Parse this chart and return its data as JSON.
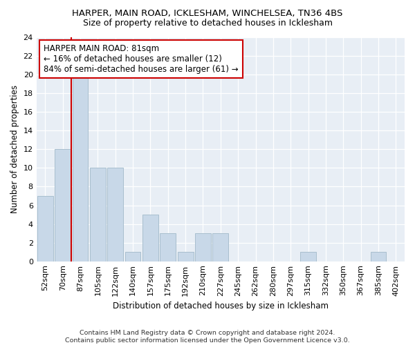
{
  "title1": "HARPER, MAIN ROAD, ICKLESHAM, WINCHELSEA, TN36 4BS",
  "title2": "Size of property relative to detached houses in Icklesham",
  "xlabel": "Distribution of detached houses by size in Icklesham",
  "ylabel": "Number of detached properties",
  "footer1": "Contains HM Land Registry data © Crown copyright and database right 2024.",
  "footer2": "Contains public sector information licensed under the Open Government Licence v3.0.",
  "bar_labels": [
    "52sqm",
    "70sqm",
    "87sqm",
    "105sqm",
    "122sqm",
    "140sqm",
    "157sqm",
    "175sqm",
    "192sqm",
    "210sqm",
    "227sqm",
    "245sqm",
    "262sqm",
    "280sqm",
    "297sqm",
    "315sqm",
    "332sqm",
    "350sqm",
    "367sqm",
    "385sqm",
    "402sqm"
  ],
  "bar_values": [
    7,
    12,
    20,
    10,
    10,
    1,
    5,
    3,
    1,
    3,
    3,
    0,
    0,
    0,
    0,
    1,
    0,
    0,
    0,
    1,
    0
  ],
  "bar_color": "#c8d8e8",
  "bar_edge_color": "#a8bece",
  "vline_color": "#cc0000",
  "vline_x_index": 2,
  "annotation_title": "HARPER MAIN ROAD: 81sqm",
  "annotation_line1": "← 16% of detached houses are smaller (12)",
  "annotation_line2": "84% of semi-detached houses are larger (61) →",
  "annotation_box_color": "#ffffff",
  "annotation_box_edge": "#cc0000",
  "ylim": [
    0,
    24
  ],
  "yticks": [
    0,
    2,
    4,
    6,
    8,
    10,
    12,
    14,
    16,
    18,
    20,
    22,
    24
  ],
  "bg_color": "#ffffff",
  "plot_bg_color": "#e8eef5",
  "grid_color": "#ffffff",
  "title1_fontsize": 9.5,
  "title2_fontsize": 9.0,
  "axis_label_fontsize": 8.5,
  "tick_fontsize": 8.0,
  "footer_fontsize": 6.8,
  "annotation_fontsize": 8.5
}
